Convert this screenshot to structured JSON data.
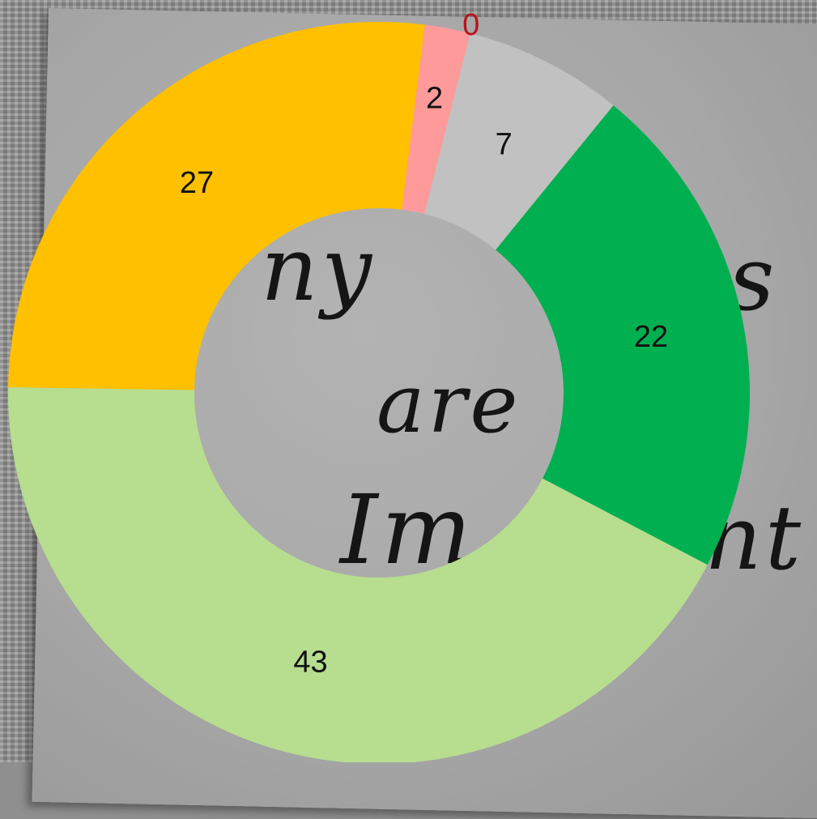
{
  "background_handwriting": [
    "ny",
    "are",
    "Im",
    "nt",
    "s"
  ],
  "chart_data": {
    "type": "donut",
    "segments": [
      {
        "value": 22,
        "color": "#00b050"
      },
      {
        "value": 43,
        "color": "#b7dd8f"
      },
      {
        "value": 27,
        "color": "#ffc000"
      },
      {
        "value": 2,
        "color": "#ff9a9a"
      },
      {
        "value": 0,
        "color": "#c00000"
      },
      {
        "value": 7,
        "color": "#c1c1c1"
      }
    ],
    "labels": [
      "22",
      "43",
      "27",
      "2",
      "0",
      "7"
    ],
    "zero_label_color": "#b8141b",
    "legend": "none"
  }
}
